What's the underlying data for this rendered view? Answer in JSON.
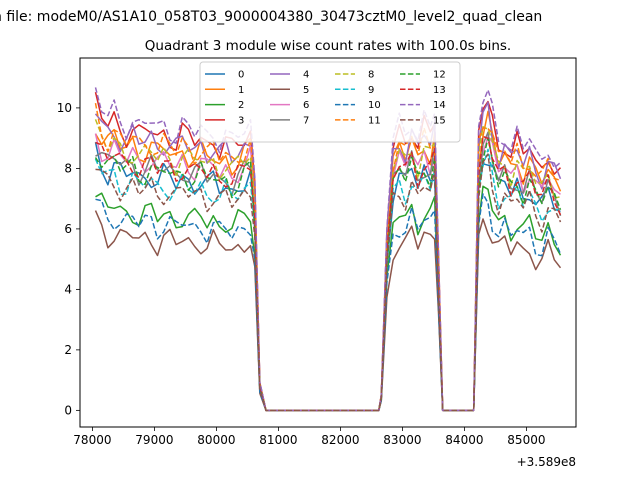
{
  "chart_data": {
    "type": "line",
    "suptitle": "n file: modeM0/AS1A10_058T03_9000004380_30473cztM0_level2_quad_clean",
    "title": "Quadrant 3 module wise count rates with 100.0s bins.",
    "xlabel": "",
    "ylabel": "",
    "offset_text": "+3.589e8",
    "xlim": [
      77800,
      85800
    ],
    "ylim": [
      -0.55,
      11.65
    ],
    "xticks": [
      78000,
      79000,
      80000,
      81000,
      82000,
      83000,
      84000,
      85000
    ],
    "xtick_labels": [
      "78000",
      "79000",
      "80000",
      "81000",
      "82000",
      "83000",
      "84000",
      "85000"
    ],
    "yticks": [
      0,
      2,
      4,
      6,
      8,
      10
    ],
    "ytick_labels": [
      "0",
      "2",
      "4",
      "6",
      "8",
      "10"
    ],
    "grid": false,
    "legend_position": "top-center",
    "legend_columns": 4,
    "segments": {
      "x": [
        [
          78050,
          78150,
          78250,
          78350,
          78450,
          78550,
          78650,
          78750,
          78850,
          78950,
          79050,
          79150,
          79250,
          79350,
          79450,
          79550,
          79650,
          79750,
          79850,
          79950,
          80050,
          80150,
          80250,
          80350,
          80450,
          80550
        ],
        [
          80620,
          80700,
          80800,
          80900,
          81000,
          81200,
          81400,
          81600,
          81800,
          82000,
          82200,
          82400,
          82620
        ],
        [
          82660,
          82750,
          82850,
          82950,
          83050,
          83150,
          83250,
          83350,
          83450,
          83520
        ],
        [
          83580,
          83650,
          83750,
          83900,
          84050,
          84150
        ],
        [
          84230,
          84300,
          84380,
          84450,
          84550,
          84650,
          84750,
          84850,
          84950,
          85050,
          85150,
          85250,
          85350,
          85450,
          85550
        ]
      ],
      "profile": [
        [
          1.0,
          0.95,
          0.92,
          0.94,
          0.91,
          0.9,
          0.92,
          0.89,
          0.9,
          0.91,
          0.88,
          0.9,
          0.89,
          0.87,
          0.9,
          0.88,
          0.87,
          0.89,
          0.86,
          0.88,
          0.85,
          0.87,
          0.84,
          0.86,
          0.88,
          0.9
        ],
        [
          0.72,
          0.09,
          0,
          0,
          0,
          0,
          0,
          0,
          0,
          0,
          0,
          0,
          0
        ],
        [
          0.05,
          0.58,
          0.85,
          0.9,
          0.87,
          0.93,
          0.86,
          0.92,
          0.89,
          0.94
        ],
        [
          0.5,
          0,
          0,
          0,
          0,
          0
        ],
        [
          0.88,
          0.98,
          1.0,
          0.93,
          0.85,
          0.88,
          0.83,
          0.87,
          0.82,
          0.86,
          0.8,
          0.78,
          0.84,
          0.79,
          0.76
        ]
      ]
    },
    "series": [
      {
        "name": "0",
        "color": "#1f77b4",
        "dash": "solid",
        "level": 8.6
      },
      {
        "name": "1",
        "color": "#ff7f0e",
        "dash": "solid",
        "level": 9.6
      },
      {
        "name": "2",
        "color": "#2ca02c",
        "dash": "solid",
        "level": 7.2
      },
      {
        "name": "3",
        "color": "#d62728",
        "dash": "solid",
        "level": 10.2
      },
      {
        "name": "4",
        "color": "#9467bd",
        "dash": "solid",
        "level": 9.9
      },
      {
        "name": "5",
        "color": "#8c564b",
        "dash": "solid",
        "level": 6.3
      },
      {
        "name": "6",
        "color": "#e377c2",
        "dash": "solid",
        "level": 9.2
      },
      {
        "name": "7",
        "color": "#7f7f7f",
        "dash": "solid",
        "level": 8.9
      },
      {
        "name": "8",
        "color": "#bcbd22",
        "dash": "dashed",
        "level": 9.4
      },
      {
        "name": "9",
        "color": "#17becf",
        "dash": "dashed",
        "level": 8.3
      },
      {
        "name": "10",
        "color": "#1f77b4",
        "dash": "dashed",
        "level": 6.9
      },
      {
        "name": "11",
        "color": "#ff7f0e",
        "dash": "dashed",
        "level": 9.8
      },
      {
        "name": "12",
        "color": "#2ca02c",
        "dash": "dashed",
        "level": 8.8
      },
      {
        "name": "13",
        "color": "#d62728",
        "dash": "dashed",
        "level": 9.0
      },
      {
        "name": "14",
        "color": "#9467bd",
        "dash": "dashed",
        "level": 10.5
      },
      {
        "name": "15",
        "color": "#8c564b",
        "dash": "dashed",
        "level": 8.1
      }
    ]
  }
}
